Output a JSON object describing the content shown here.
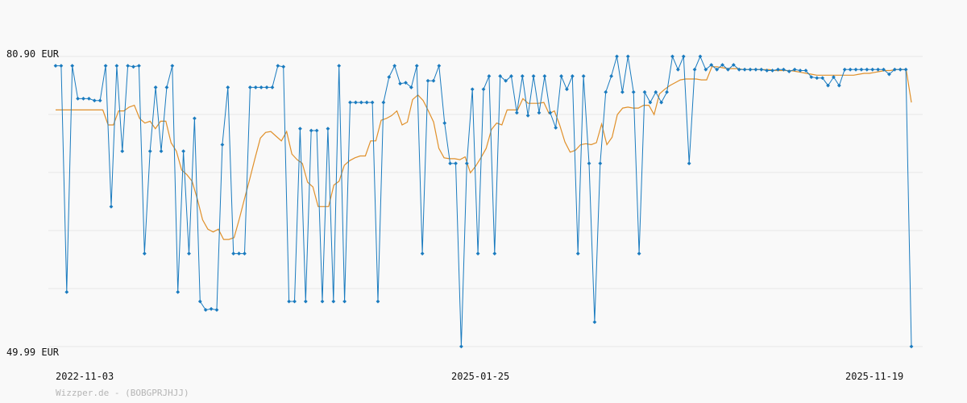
{
  "footer": "Wizzper.de - (BOBGPRJHJJ)",
  "colors": {
    "price": "#1a7bbf",
    "average": "#e0902a",
    "grid": "#e6e6e6",
    "background": "#f9f9f9"
  },
  "chart_data": {
    "type": "line",
    "ylim": [
      49.99,
      80.9
    ],
    "y_tick_labels": [
      "80.90 EUR",
      "49.99 EUR"
    ],
    "x_tick_labels": [
      "2022-11-03",
      "2025-01-25",
      "2025-11-19"
    ],
    "grid": true,
    "series": [
      {
        "values": [
          79.9,
          79.9,
          55.8,
          79.9,
          76.4,
          76.4,
          76.4,
          76.2,
          76.2,
          79.9,
          64.9,
          79.9,
          70.8,
          79.9,
          79.8,
          79.9,
          59.9,
          70.8,
          77.6,
          70.8,
          77.6,
          79.9,
          55.8,
          70.8,
          59.9,
          74.3,
          54.8,
          53.9,
          54.0,
          53.9,
          71.5,
          77.6,
          59.9,
          59.9,
          59.9,
          77.6,
          77.6,
          77.6,
          77.6,
          77.6,
          79.9,
          79.8,
          54.8,
          54.8,
          73.2,
          54.8,
          73.0,
          73.0,
          54.8,
          73.2,
          54.8,
          79.9,
          54.8,
          76.0,
          76.0,
          76.0,
          76.0,
          76.0,
          54.8,
          76.0,
          78.7,
          79.9,
          78.0,
          78.1,
          77.6,
          79.9,
          59.9,
          78.3,
          78.3,
          79.9,
          73.8,
          69.5,
          69.5,
          50.0,
          69.5,
          77.4,
          59.9,
          77.4,
          78.8,
          59.9,
          78.8,
          78.3,
          78.8,
          74.9,
          78.8,
          74.6,
          78.8,
          74.9,
          78.8,
          74.9,
          73.3,
          78.8,
          77.4,
          78.8,
          59.9,
          78.8,
          69.5,
          52.6,
          69.5,
          77.1,
          78.8,
          80.9,
          77.1,
          80.9,
          77.1,
          59.9,
          77.1,
          76.0,
          77.1,
          76.0,
          77.1,
          80.9,
          79.5,
          80.9,
          69.5,
          79.5,
          80.9,
          79.5,
          80.0,
          79.5,
          80.0,
          79.5,
          80.0,
          79.5,
          79.5,
          79.5,
          79.5,
          79.5,
          79.4,
          79.4,
          79.5,
          79.5,
          79.3,
          79.5,
          79.4,
          79.4,
          78.7,
          78.6,
          78.6,
          77.8,
          78.7,
          77.8,
          79.5,
          79.5,
          79.5,
          79.5,
          79.5,
          79.5,
          79.5,
          79.5,
          79.0,
          79.5,
          79.5,
          79.5,
          50.0
        ]
      },
      {
        "values": [
          75.2,
          75.2,
          75.2,
          75.2,
          75.2,
          75.2,
          75.2,
          75.2,
          75.2,
          75.2,
          73.6,
          73.6,
          75.1,
          75.1,
          75.5,
          75.7,
          74.3,
          73.8,
          74.0,
          73.2,
          74.0,
          74.0,
          71.7,
          70.8,
          68.8,
          68.3,
          67.6,
          65.7,
          63.5,
          62.5,
          62.2,
          62.5,
          61.4,
          61.4,
          61.6,
          63.6,
          65.8,
          67.9,
          70.1,
          72.2,
          72.8,
          72.9,
          72.4,
          71.9,
          72.9,
          70.5,
          69.9,
          69.5,
          67.5,
          67.0,
          64.9,
          64.9,
          64.9,
          67.2,
          67.6,
          69.3,
          69.8,
          70.1,
          70.3,
          70.3,
          71.9,
          71.9,
          74.1,
          74.3,
          74.6,
          75.1,
          73.6,
          73.9,
          76.3,
          76.8,
          76.2,
          75.1,
          73.9,
          71.1,
          70.1,
          70.0,
          70.0,
          69.9,
          70.2,
          68.5,
          69.2,
          70.1,
          71.1,
          73.1,
          73.8,
          73.6,
          75.2,
          75.2,
          75.2,
          76.4,
          75.9,
          75.9,
          75.9,
          76.0,
          74.8,
          75.1,
          73.6,
          71.8,
          70.7,
          70.9,
          71.5,
          71.6,
          71.5,
          71.7,
          73.7,
          71.5,
          72.3,
          74.7,
          75.4,
          75.5,
          75.4,
          75.4,
          75.7,
          75.7,
          74.7,
          76.9,
          77.4,
          77.8,
          78.1,
          78.4,
          78.5,
          78.5,
          78.5,
          78.4,
          78.4,
          79.8,
          79.8,
          79.7,
          79.6,
          79.6,
          79.6,
          79.5,
          79.5,
          79.5,
          79.5,
          79.5,
          79.5,
          79.4,
          79.4,
          79.4,
          79.4,
          79.3,
          79.2,
          79.1,
          79.0,
          78.9,
          78.9,
          78.9,
          78.9,
          78.9,
          78.9,
          78.9,
          78.9,
          79.0,
          79.1,
          79.1,
          79.2,
          79.3,
          79.4,
          79.4,
          79.5,
          79.5,
          79.5,
          76.0
        ]
      }
    ]
  }
}
